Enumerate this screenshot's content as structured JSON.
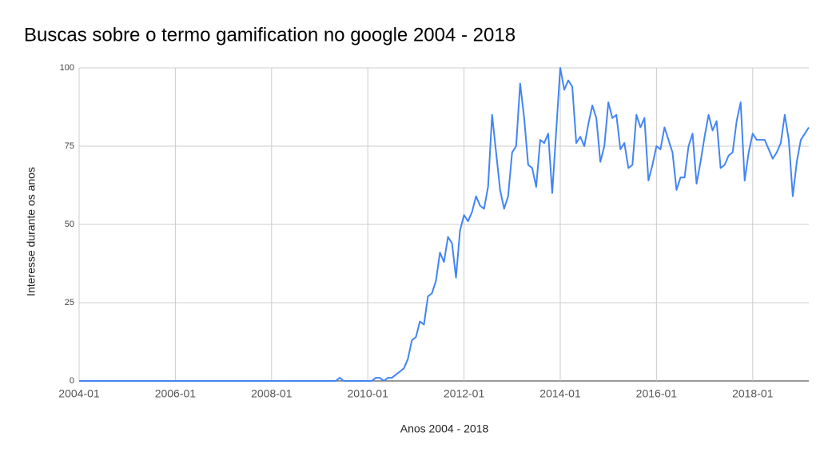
{
  "chart_data": {
    "type": "line",
    "title": "Buscas sobre o termo gamification no google 2004 - 2018",
    "x_label": "Anos 2004 - 2018",
    "y_label": "Interesse durante os anos",
    "categories": [
      "2004-01",
      null,
      null,
      null,
      null,
      null,
      null,
      null,
      null,
      null,
      null,
      null,
      null,
      null,
      null,
      null,
      null,
      null,
      null,
      null,
      null,
      null,
      null,
      null,
      "2006-01",
      null,
      null,
      null,
      null,
      null,
      null,
      null,
      null,
      null,
      null,
      null,
      null,
      null,
      null,
      null,
      null,
      null,
      null,
      null,
      null,
      null,
      null,
      null,
      "2008-01",
      null,
      null,
      null,
      null,
      null,
      null,
      null,
      null,
      null,
      null,
      null,
      null,
      null,
      null,
      null,
      null,
      null,
      null,
      null,
      null,
      null,
      null,
      null,
      "2010-01",
      null,
      null,
      null,
      null,
      null,
      null,
      null,
      null,
      null,
      null,
      null,
      null,
      null,
      null,
      null,
      null,
      null,
      null,
      null,
      null,
      null,
      null,
      null,
      "2012-01",
      null,
      null,
      null,
      null,
      null,
      null,
      null,
      null,
      null,
      null,
      null,
      null,
      null,
      null,
      null,
      null,
      null,
      null,
      null,
      null,
      null,
      null,
      null,
      "2014-01",
      null,
      null,
      null,
      null,
      null,
      null,
      null,
      null,
      null,
      null,
      null,
      null,
      null,
      null,
      null,
      null,
      null,
      null,
      null,
      null,
      null,
      null,
      null,
      "2016-01",
      null,
      null,
      null,
      null,
      null,
      null,
      null,
      null,
      null,
      null,
      null,
      null,
      null,
      null,
      null,
      null,
      null,
      null,
      null,
      null,
      null,
      null,
      null,
      "2018-01",
      null,
      null,
      null,
      null,
      null,
      null,
      null,
      null,
      null,
      null,
      null,
      null,
      null,
      null
    ],
    "values": [
      0,
      0,
      0,
      0,
      0,
      0,
      0,
      0,
      0,
      0,
      0,
      0,
      0,
      0,
      0,
      0,
      0,
      0,
      0,
      0,
      0,
      0,
      0,
      0,
      0,
      0,
      0,
      0,
      0,
      0,
      0,
      0,
      0,
      0,
      0,
      0,
      0,
      0,
      0,
      0,
      0,
      0,
      0,
      0,
      0,
      0,
      0,
      0,
      0,
      0,
      0,
      0,
      0,
      0,
      0,
      0,
      0,
      0,
      0,
      0,
      0,
      0,
      0,
      0,
      0,
      1,
      0,
      0,
      0,
      0,
      0,
      0,
      0,
      0,
      1,
      1,
      0,
      1,
      1,
      2,
      3,
      4,
      7,
      13,
      14,
      19,
      18,
      27,
      28,
      32,
      41,
      38,
      46,
      44,
      33,
      48,
      53,
      51,
      54,
      59,
      56,
      55,
      62,
      85,
      73,
      61,
      55,
      59,
      73,
      75,
      95,
      84,
      69,
      68,
      62,
      77,
      76,
      79,
      60,
      80,
      100,
      93,
      96,
      94,
      76,
      78,
      75,
      82,
      88,
      84,
      70,
      75,
      89,
      84,
      85,
      74,
      76,
      68,
      69,
      85,
      81,
      84,
      64,
      69,
      75,
      74,
      81,
      77,
      73,
      61,
      65,
      65,
      75,
      79,
      63,
      70,
      78,
      85,
      80,
      83,
      68,
      69,
      72,
      73,
      83,
      89,
      64,
      73,
      79,
      77,
      77,
      77,
      74,
      71,
      73,
      76,
      85,
      77,
      59,
      70,
      77,
      79,
      81
    ],
    "color": "#4285f4",
    "ylim": [
      0,
      100
    ],
    "yticks": [
      0,
      25,
      50,
      75,
      100
    ],
    "grid": true
  }
}
